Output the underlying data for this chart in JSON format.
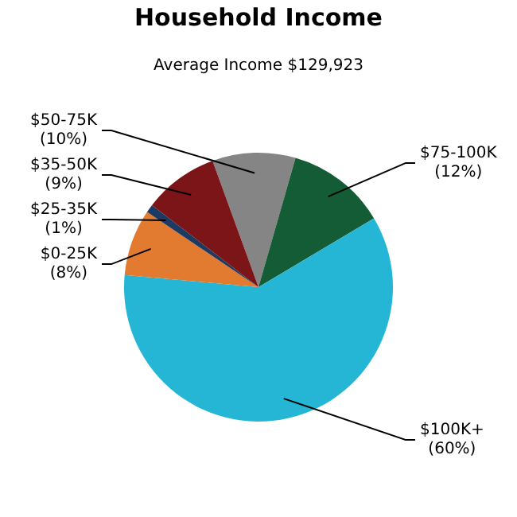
{
  "chart_data": {
    "type": "pie",
    "title": "Household Income",
    "subtitle": "Average Income  $129,923",
    "categories": [
      "$50-75K",
      "$75-100K",
      "$100K+",
      "$0-25K",
      "$25-35K",
      "$35-50K"
    ],
    "values": [
      10,
      12,
      60,
      8,
      1,
      9
    ],
    "colors": [
      "#858585",
      "#145c35",
      "#25b6d6",
      "#e27a2f",
      "#1d3a63",
      "#7b1518"
    ],
    "value_labels": [
      "(10%)",
      "(12%)",
      "(60%)",
      "(8%)",
      "(1%)",
      "(9%)"
    ],
    "legend": false
  }
}
